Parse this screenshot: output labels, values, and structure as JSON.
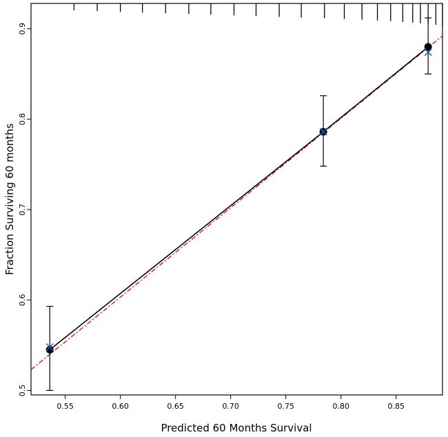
{
  "chart_data": {
    "type": "scatter",
    "title": "",
    "xlabel": "Predicted  60 Months Survival",
    "ylabel": "Fraction Surviving 60 months",
    "xlim": [
      0.519,
      0.892
    ],
    "ylim": [
      0.495,
      0.928
    ],
    "x_ticks": [
      "0.55",
      "0.60",
      "0.65",
      "0.70",
      "0.75",
      "0.80",
      "0.85"
    ],
    "y_ticks": [
      "0.5",
      "0.6",
      "0.7",
      "0.8",
      "0.9"
    ],
    "grid": false,
    "observed": {
      "x": [
        0.536,
        0.784,
        0.879
      ],
      "y": [
        0.545,
        0.786,
        0.88
      ],
      "ci_lower": [
        0.5,
        0.748,
        0.85
      ],
      "ci_upper": [
        0.593,
        0.826,
        0.912
      ]
    },
    "bias_corrected": {
      "x": [
        0.536,
        0.784,
        0.879
      ],
      "y": [
        0.548,
        0.786,
        0.874
      ]
    },
    "ideal_line": {
      "x": [
        0.519,
        0.892
      ],
      "y": [
        0.523,
        0.892
      ]
    },
    "rug_top": [
      0.558,
      0.579,
      0.6,
      0.62,
      0.641,
      0.662,
      0.682,
      0.703,
      0.723,
      0.744,
      0.764,
      0.785,
      0.803,
      0.819,
      0.833,
      0.845,
      0.856,
      0.865,
      0.872,
      0.879,
      0.886,
      0.892
    ],
    "colors": {
      "observed": "#000000",
      "bias_corrected": "#1e5fd6",
      "ideal_line": "#e00000",
      "axis": "#000000"
    }
  }
}
